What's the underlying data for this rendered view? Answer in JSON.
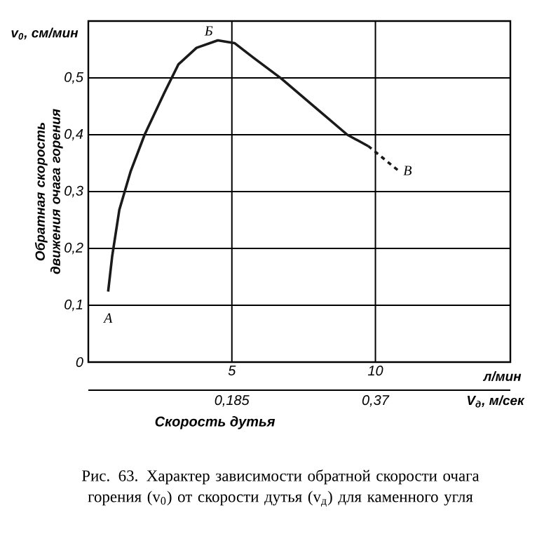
{
  "chart_data": {
    "type": "line",
    "xlabel": "Скорость дутья",
    "ylabel": "Обратная скорость движения очага горения",
    "xlim": [
      0,
      14.7
    ],
    "ylim": [
      0,
      0.6
    ],
    "xticks": [
      5,
      10
    ],
    "yticks": [
      0,
      {
        "value": 0.1,
        "label": "0,1"
      },
      {
        "value": 0.2,
        "label": "0,2"
      },
      {
        "value": 0.3,
        "label": "0,3"
      },
      {
        "value": 0.4,
        "label": "0,4"
      },
      {
        "value": 0.5,
        "label": "0,5"
      }
    ],
    "x2lim": [
      0,
      0.544
    ],
    "x2ticks": [
      {
        "value": 0.185,
        "label": "0,185"
      },
      {
        "value": 0.37,
        "label": "0,37"
      }
    ],
    "grid": true,
    "series": [
      {
        "color": "#1a1a1a",
        "line_style": "solid",
        "x": [
          0.69,
          0.83,
          1.08,
          1.47,
          1.96,
          2.65,
          3.14,
          3.77,
          4.51,
          5.1,
          5.74,
          6.72,
          8.04,
          9.02,
          9.75
        ],
        "values": [
          0.124,
          0.186,
          0.268,
          0.335,
          0.4,
          0.474,
          0.524,
          0.553,
          0.566,
          0.561,
          0.536,
          0.499,
          0.442,
          0.4,
          0.38
        ]
      },
      {
        "color": "#1a1a1a",
        "line_style": "dashed",
        "x": [
          9.75,
          10.8
        ],
        "values": [
          0.38,
          0.337
        ]
      }
    ],
    "annotations": [
      "v$_{0}$, см/мин",
      "л/мин",
      "V$_{д}$, м/сек",
      "Рис. 63. Характер зависимости обратной скорости очага горения (v$_{0}$) от скорости дутья (v$_{д}$) для каменного угля",
      {
        "text": "А",
        "x": 0.69,
        "y": 0.124
      },
      {
        "text": "Б",
        "x": 4.51,
        "y": 0.566
      },
      {
        "text": "В",
        "x": 10.8,
        "y": 0.337
      }
    ]
  }
}
